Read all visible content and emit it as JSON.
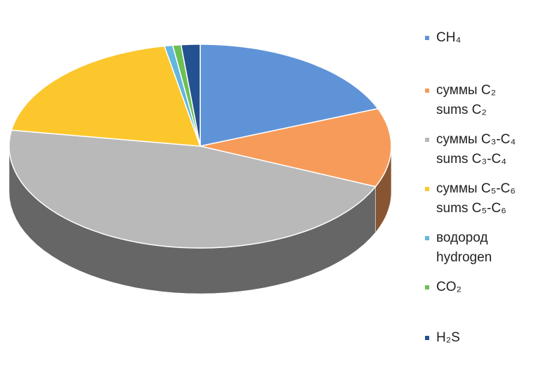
{
  "chart_data": {
    "type": "pie3d",
    "categories": [
      "CH₄",
      "суммы C₂\nsums C₂",
      "суммы C₃-C₄\nsums C₃-C₄",
      "суммы C₅-C₆\nsums C₅-C₆",
      "водород\nhydrogen",
      "CO₂",
      "H₂S"
    ],
    "values": [
      19,
      12.5,
      46,
      19.5,
      0.7,
      0.7,
      1.6
    ],
    "colors": [
      "#5f93d8",
      "#f79b5a",
      "#b9b9b9",
      "#fcc72c",
      "#63b6de",
      "#6cbf55",
      "#24518f"
    ],
    "legend": "right"
  }
}
